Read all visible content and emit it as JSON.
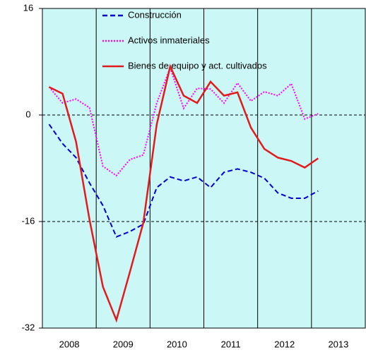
{
  "chart_data": {
    "type": "line",
    "x": [
      2008.125,
      2008.375,
      2008.625,
      2008.875,
      2009.125,
      2009.375,
      2009.625,
      2009.875,
      2010.125,
      2010.375,
      2010.625,
      2010.875,
      2011.125,
      2011.375,
      2011.625,
      2011.875,
      2012.125,
      2012.375,
      2012.625,
      2012.875,
      2013.125
    ],
    "series": [
      {
        "name": "Construcción",
        "color": "#0000cc",
        "dash": "dashed",
        "values": [
          -1.4,
          -4.3,
          -6.4,
          -10.2,
          -13.6,
          -18.3,
          -17.5,
          -16.4,
          -10.9,
          -9.3,
          -9.9,
          -9.3,
          -10.9,
          -8.6,
          -8.1,
          -8.6,
          -9.5,
          -11.7,
          -12.5,
          -12.5,
          -11.4
        ]
      },
      {
        "name": "Activos inmateriales",
        "color": "#ff00ff",
        "dash": "dotted",
        "values": [
          4.2,
          1.8,
          2.4,
          1.1,
          -7.7,
          -9.1,
          -6.7,
          -6.0,
          1.8,
          7.1,
          1.0,
          4.0,
          3.9,
          1.8,
          4.8,
          2.1,
          3.5,
          2.9,
          4.7,
          -0.6,
          0.2
        ]
      },
      {
        "name": "Bienes de equipo y act. cultivados",
        "color": "#e31a1c",
        "dash": "solid",
        "values": [
          4.2,
          3.2,
          -4.0,
          -15.7,
          -25.8,
          -30.8,
          -23.6,
          -16.2,
          -1.4,
          7.3,
          2.9,
          1.8,
          5.0,
          2.9,
          3.4,
          -1.9,
          -5.1,
          -6.4,
          -6.9,
          -7.9,
          -6.5
        ]
      }
    ],
    "xlim": [
      2008,
      2014
    ],
    "xticks": [
      {
        "value": 2008.5,
        "label": "2008"
      },
      {
        "value": 2009.5,
        "label": "2009"
      },
      {
        "value": 2010.5,
        "label": "2010"
      },
      {
        "value": 2011.5,
        "label": "2011"
      },
      {
        "value": 2012.5,
        "label": "2012"
      },
      {
        "value": 2013.5,
        "label": "2013"
      }
    ],
    "xgrid": [
      2009,
      2010,
      2011,
      2012,
      2013
    ],
    "ylim": [
      -32,
      16
    ],
    "yticks": [
      -32,
      -16,
      0,
      16
    ],
    "grid": true,
    "legend": "upper left",
    "background": "#ccf7f7"
  }
}
